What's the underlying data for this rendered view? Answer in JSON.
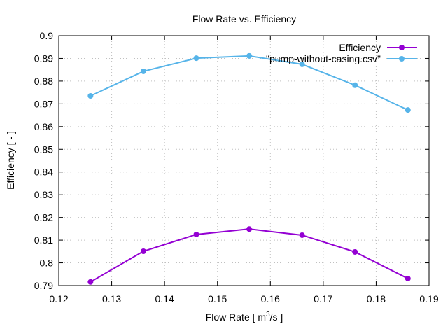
{
  "chart_data": {
    "type": "line",
    "title": "Flow Rate  vs. Efficiency",
    "xlabel_prefix": "Flow Rate [ m",
    "xlabel_sup": "3",
    "xlabel_suffix": "/s ]",
    "ylabel": "Efficiency [ - ]",
    "xlim": [
      0.12,
      0.19
    ],
    "ylim": [
      0.79,
      0.9
    ],
    "xticks": [
      "0.12",
      "0.13",
      "0.14",
      "0.15",
      "0.16",
      "0.17",
      "0.18",
      "0.19"
    ],
    "yticks": [
      "0.79",
      "0.8",
      "0.81",
      "0.82",
      "0.83",
      "0.84",
      "0.85",
      "0.86",
      "0.87",
      "0.88",
      "0.89",
      "0.9"
    ],
    "grid": true,
    "legend_position": "top-right",
    "x": [
      0.126,
      0.136,
      0.146,
      0.156,
      0.166,
      0.176,
      0.186
    ],
    "series": [
      {
        "name": "Efficiency",
        "color": "#9400d3",
        "values": [
          0.7916,
          0.8051,
          0.8125,
          0.8149,
          0.8122,
          0.8048,
          0.7931
        ]
      },
      {
        "name": "\"pump-without-casing.csv\"",
        "color": "#56b4e9",
        "values": [
          0.8735,
          0.8843,
          0.8901,
          0.8911,
          0.8874,
          0.8782,
          0.8673
        ]
      }
    ]
  }
}
